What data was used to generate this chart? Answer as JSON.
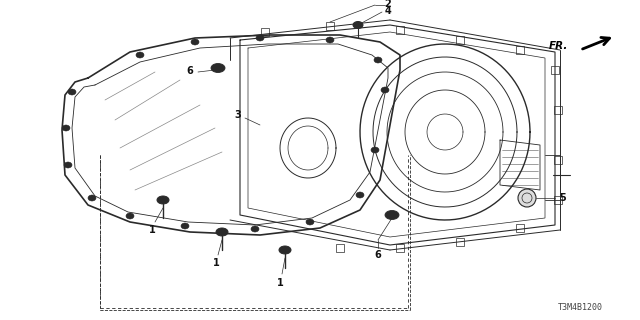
{
  "background_color": "#ffffff",
  "line_color": "#2a2a2a",
  "diagram_code": "T3M4B1200",
  "figsize": [
    6.4,
    3.2
  ],
  "dpi": 100
}
